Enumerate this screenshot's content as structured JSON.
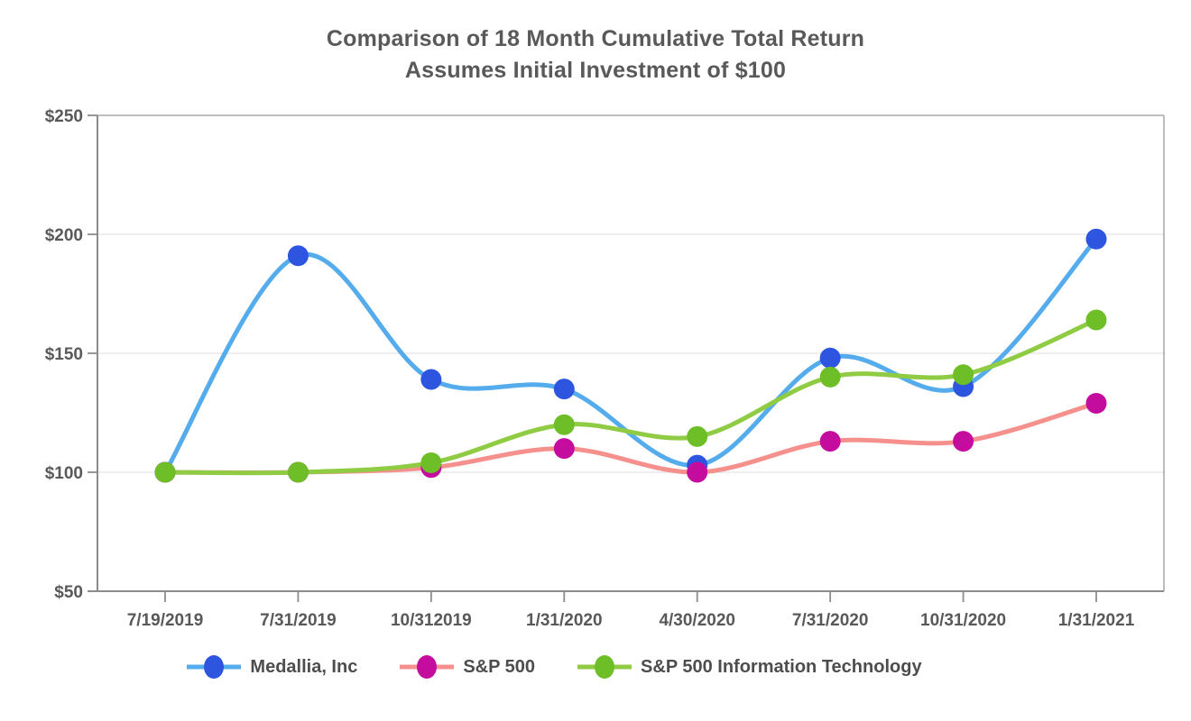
{
  "title": {
    "line1": "Comparison of 18 Month Cumulative Total Return",
    "line2": "Assumes Initial Investment of $100"
  },
  "chart_data": {
    "type": "line",
    "title": "Comparison of 18 Month Cumulative Total Return — Assumes Initial Investment of $100",
    "categories": [
      "7/19/2019",
      "7/31/2019",
      "10/312019",
      "1/31/2020",
      "4/30/2020",
      "7/31/2020",
      "10/31/2020",
      "1/31/2021"
    ],
    "series": [
      {
        "name": "Medallia, Inc",
        "values": [
          100,
          191,
          139,
          135,
          103,
          148,
          136,
          198
        ],
        "line_color": "#55ACEC",
        "marker_color": "#2E55DF"
      },
      {
        "name": "S&P 500",
        "values": [
          100,
          100,
          102,
          110,
          100,
          113,
          113,
          129
        ],
        "line_color": "#F5908C",
        "marker_color": "#C40D9E"
      },
      {
        "name": "S&P 500 Information Technology",
        "values": [
          100,
          100,
          104,
          120,
          115,
          140,
          141,
          164
        ],
        "line_color": "#8FCB43",
        "marker_color": "#6DBE27"
      }
    ],
    "ylim": [
      50,
      250
    ],
    "y_ticks": [
      50,
      100,
      150,
      200,
      250
    ],
    "y_tick_labels": [
      "$50",
      "$100",
      "$150",
      "$200",
      "$250"
    ],
    "xlabel": "",
    "ylabel": "",
    "grid": true,
    "legend_position": "bottom",
    "style": {
      "gridline_color": "#E9E9E9",
      "border_color": "#ABABAB",
      "axis_color": "#8C8C8C",
      "tick_color": "#8C8C8C",
      "text_color": "#595959"
    }
  }
}
